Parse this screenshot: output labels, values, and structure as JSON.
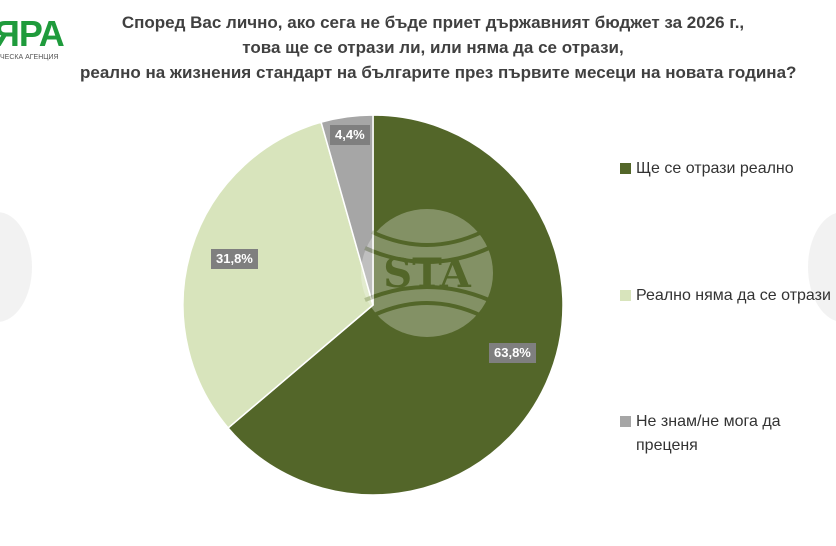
{
  "logo": {
    "text": "ЯРА",
    "subtitle": "ЧЕСКА АГЕНЦИЯ",
    "color": "#1f9b3c"
  },
  "watermark": {
    "text": "STA"
  },
  "chart_data": {
    "type": "pie",
    "title": "Според Вас лично, ако сега не бъде приет държавният бюджет за 2026 г., това ще се отрази ли, или няма да се отрази, реално на жизнения стандарт на българите през първите месеци на новата година?",
    "title_lines": [
      "Според Вас лично, ако сега не бъде приет държавният бюджет за 2026 г.,",
      "това ще се отрази ли, или няма да се отрази,",
      "реално на жизнения стандарт на българите през първите месеци на новата година?"
    ],
    "categories": [
      "Ще се отрази реално",
      "Реално няма да се отрази",
      "Не знам/не мога да преценя"
    ],
    "values": [
      63.8,
      31.8,
      4.4
    ],
    "labels": [
      "63,8%",
      "31,8%",
      "4,4%"
    ],
    "colors": [
      "#536629",
      "#d8e4bc",
      "#a6a6a6"
    ],
    "start_angle": "12 o'clock, clockwise",
    "legend_position": "right",
    "legend": [
      {
        "label": "Ще се отрази реално",
        "color": "#536629"
      },
      {
        "label": "Реално няма да се отрази",
        "color": "#d8e4bc"
      },
      {
        "label": "Не знам/не мога да",
        "label2": "преценя",
        "color": "#a6a6a6"
      }
    ]
  }
}
